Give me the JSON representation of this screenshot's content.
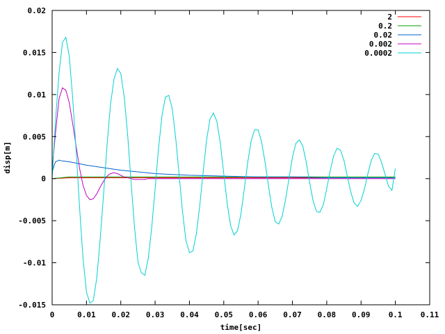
{
  "chart_data": {
    "type": "line",
    "title": "",
    "xlabel": "time[sec]",
    "ylabel": "disp[m]",
    "xlim": [
      0,
      0.11
    ],
    "ylim": [
      -0.015,
      0.02
    ],
    "xticks": [
      0,
      0.01,
      0.02,
      0.03,
      0.04,
      0.05,
      0.06,
      0.07,
      0.08,
      0.09,
      0.1,
      0.11
    ],
    "xtick_labels": [
      "0",
      "0.01",
      "0.02",
      "0.03",
      "0.04",
      "0.05",
      "0.06",
      "0.07",
      "0.08",
      "0.09",
      "0.1",
      "0.11"
    ],
    "yticks": [
      -0.015,
      -0.01,
      -0.005,
      0,
      0.005,
      0.01,
      0.015,
      0.02
    ],
    "ytick_labels": [
      "-0.015",
      "-0.01",
      "-0.005",
      "0",
      "0.005",
      "0.01",
      "0.015",
      "0.02"
    ],
    "grid": false,
    "legend_position": "top-right",
    "series": [
      {
        "name": "2",
        "color": "#ff0000",
        "x": [
          0,
          0.005,
          0.01,
          0.015,
          0.02,
          0.025,
          0.03,
          0.04,
          0.05,
          0.06,
          0.07,
          0.08,
          0.09,
          0.1
        ],
        "y": [
          0,
          0.0001,
          0.0001,
          0.0001,
          0.0001,
          0.0001,
          0.0001,
          0.0001,
          0.0001,
          0.0001,
          0.0001,
          0.0001,
          0.0001,
          0.0001
        ]
      },
      {
        "name": "0.2",
        "color": "#00a000",
        "x": [
          0,
          0.005,
          0.01,
          0.015,
          0.02,
          0.025,
          0.03,
          0.04,
          0.05,
          0.06,
          0.07,
          0.08,
          0.09,
          0.1
        ],
        "y": [
          0,
          0.0002,
          0.0002,
          0.0002,
          0.0002,
          0.0002,
          0.0002,
          0.0002,
          0.0002,
          0.0002,
          0.0002,
          0.0002,
          0.0002,
          0.0002
        ]
      },
      {
        "name": "0.02",
        "color": "#0060d0",
        "x": [
          0,
          0.0005,
          0.001,
          0.002,
          0.003,
          0.005,
          0.01,
          0.015,
          0.02,
          0.025,
          0.03,
          0.035,
          0.04,
          0.05,
          0.06,
          0.07,
          0.08,
          0.09,
          0.1
        ],
        "y": [
          0.0007,
          0.0015,
          0.002,
          0.0022,
          0.0021,
          0.002,
          0.0016,
          0.0013,
          0.001,
          0.0008,
          0.0006,
          0.0005,
          0.0004,
          0.0003,
          0.0002,
          0.0002,
          0.0001,
          0.0001,
          0.0001
        ]
      },
      {
        "name": "0.002",
        "color": "#c000c0",
        "x": [
          0,
          0.001,
          0.002,
          0.003,
          0.004,
          0.005,
          0.006,
          0.007,
          0.008,
          0.009,
          0.01,
          0.011,
          0.012,
          0.013,
          0.014,
          0.015,
          0.016,
          0.017,
          0.018,
          0.019,
          0.02,
          0.021,
          0.022,
          0.023,
          0.024,
          0.025,
          0.026,
          0.027,
          0.028,
          0.029,
          0.03,
          0.032,
          0.034,
          0.036,
          0.04,
          0.05,
          0.06,
          0.07,
          0.08,
          0.09,
          0.1
        ],
        "y": [
          0.001,
          0.0055,
          0.0095,
          0.0108,
          0.0105,
          0.009,
          0.0065,
          0.0038,
          0.0012,
          -0.0008,
          -0.002,
          -0.0025,
          -0.0024,
          -0.0018,
          -0.001,
          -0.0003,
          0.0003,
          0.0006,
          0.0007,
          0.0006,
          0.0004,
          0.0002,
          0.0001,
          0,
          -0.0001,
          -0.0001,
          -0.0001,
          -0.0001,
          0,
          0,
          0,
          0,
          0,
          0,
          0,
          0,
          0,
          0,
          0,
          0,
          0
        ]
      },
      {
        "name": "0.0002",
        "color": "#00d0d0",
        "x": [
          0,
          0.001,
          0.002,
          0.003,
          0.004,
          0.005,
          0.006,
          0.007,
          0.008,
          0.009,
          0.01,
          0.011,
          0.012,
          0.013,
          0.014,
          0.015,
          0.016,
          0.017,
          0.018,
          0.019,
          0.02,
          0.021,
          0.022,
          0.023,
          0.024,
          0.025,
          0.026,
          0.027,
          0.028,
          0.029,
          0.03,
          0.031,
          0.032,
          0.033,
          0.034,
          0.035,
          0.036,
          0.037,
          0.038,
          0.039,
          0.04,
          0.041,
          0.042,
          0.043,
          0.044,
          0.045,
          0.046,
          0.047,
          0.048,
          0.049,
          0.05,
          0.051,
          0.052,
          0.053,
          0.054,
          0.055,
          0.056,
          0.057,
          0.058,
          0.059,
          0.06,
          0.061,
          0.062,
          0.063,
          0.064,
          0.065,
          0.066,
          0.067,
          0.068,
          0.069,
          0.07,
          0.071,
          0.072,
          0.073,
          0.074,
          0.075,
          0.076,
          0.077,
          0.078,
          0.079,
          0.08,
          0.081,
          0.082,
          0.083,
          0.084,
          0.085,
          0.086,
          0.087,
          0.088,
          0.089,
          0.09,
          0.091,
          0.092,
          0.093,
          0.094,
          0.095,
          0.096,
          0.097,
          0.098,
          0.099,
          0.1
        ],
        "y": [
          0,
          0.007,
          0.0125,
          0.0162,
          0.0168,
          0.0145,
          0.0095,
          0.0032,
          -0.0035,
          -0.0095,
          -0.0135,
          -0.0148,
          -0.0145,
          -0.0118,
          -0.0072,
          -0.0018,
          0.004,
          0.0088,
          0.0118,
          0.0131,
          0.0125,
          0.0097,
          0.0052,
          -0.0004,
          -0.0058,
          -0.0099,
          -0.0112,
          -0.0115,
          -0.0095,
          -0.0058,
          -0.0012,
          0.0036,
          0.0075,
          0.0097,
          0.0099,
          0.0083,
          0.0048,
          0.0005,
          -0.004,
          -0.0074,
          -0.0088,
          -0.0086,
          -0.0066,
          -0.0032,
          0.0008,
          0.0046,
          0.0071,
          0.0078,
          0.0068,
          0.0042,
          0.0006,
          -0.003,
          -0.0056,
          -0.0067,
          -0.0062,
          -0.0042,
          -0.0012,
          0.002,
          0.0045,
          0.0058,
          0.0058,
          0.0044,
          0.002,
          -0.0008,
          -0.0034,
          -0.0051,
          -0.0054,
          -0.0045,
          -0.0025,
          0,
          0.0025,
          0.0042,
          0.0046,
          0.0039,
          0.002,
          -0.0004,
          -0.0026,
          -0.0039,
          -0.004,
          -0.0031,
          -0.0012,
          0.0009,
          0.0027,
          0.0036,
          0.0034,
          0.0022,
          0.0003,
          -0.0016,
          -0.0029,
          -0.0033,
          -0.0026,
          -0.0012,
          0.0006,
          0.0022,
          0.003,
          0.0029,
          0.0019,
          0.0005,
          -0.0009,
          -0.0014,
          0.0012
        ]
      }
    ]
  }
}
